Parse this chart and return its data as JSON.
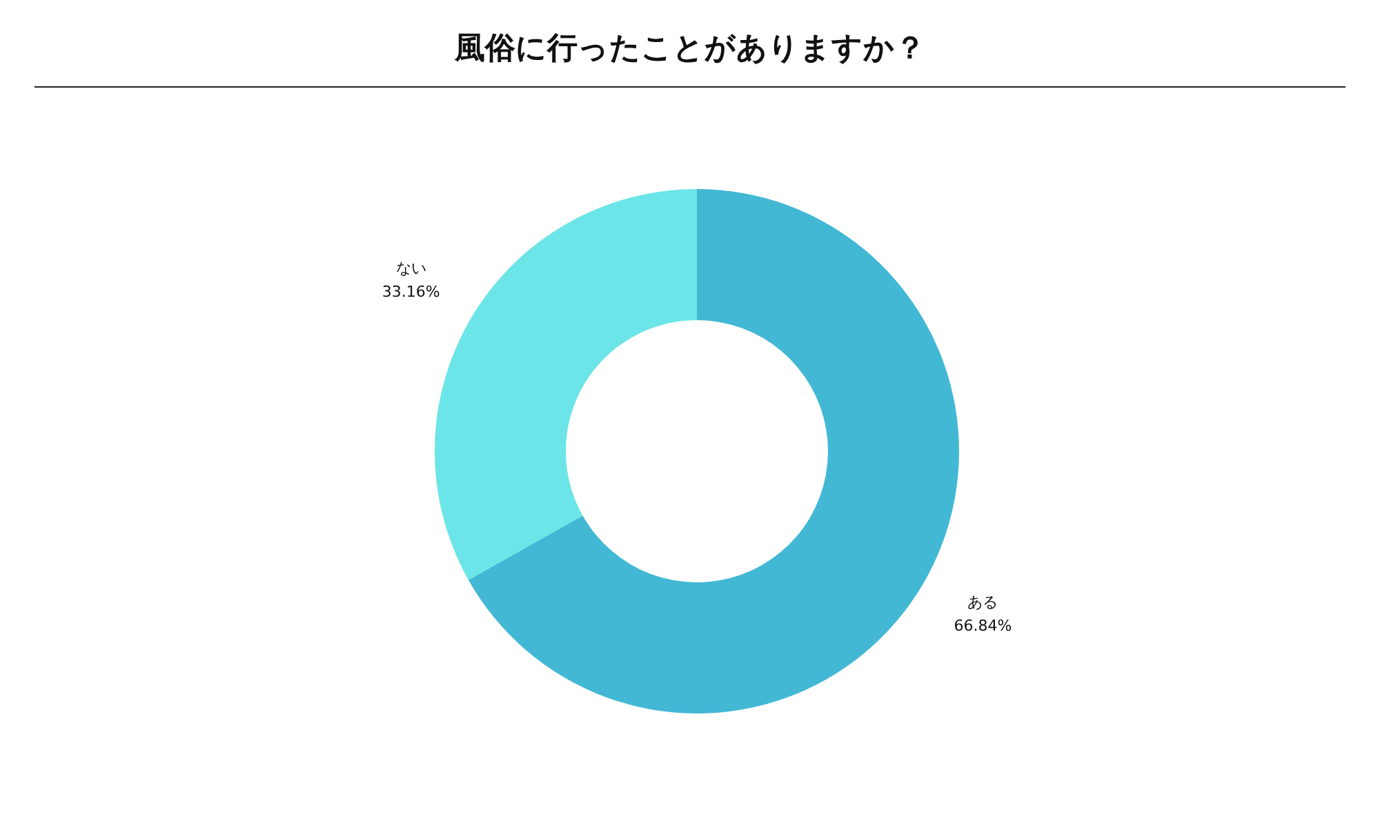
{
  "chart_data": {
    "type": "donut",
    "title": "風俗に行ったことがありますか？",
    "categories": [
      "ある",
      "ない"
    ],
    "values": [
      66.84,
      33.16
    ],
    "colors": [
      "#42b8d5",
      "#6ce5e8"
    ],
    "value_labels": [
      "66.84%",
      "33.16%"
    ],
    "legend": false
  }
}
